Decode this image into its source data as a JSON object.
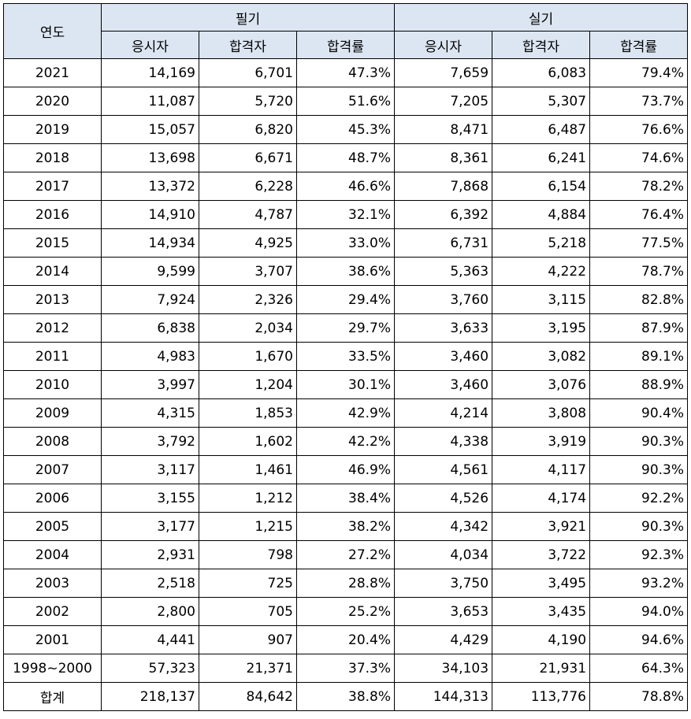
{
  "header": {
    "year": "연도",
    "written": "필기",
    "practical": "실기",
    "applicants": "응시자",
    "passers": "합격자",
    "pass_rate": "합격률"
  },
  "rows": [
    {
      "year": "2021",
      "w_app": "14,169",
      "w_pass": "6,701",
      "w_rate": "47.3%",
      "p_app": "7,659",
      "p_pass": "6,083",
      "p_rate": "79.4%"
    },
    {
      "year": "2020",
      "w_app": "11,087",
      "w_pass": "5,720",
      "w_rate": "51.6%",
      "p_app": "7,205",
      "p_pass": "5,307",
      "p_rate": "73.7%"
    },
    {
      "year": "2019",
      "w_app": "15,057",
      "w_pass": "6,820",
      "w_rate": "45.3%",
      "p_app": "8,471",
      "p_pass": "6,487",
      "p_rate": "76.6%"
    },
    {
      "year": "2018",
      "w_app": "13,698",
      "w_pass": "6,671",
      "w_rate": "48.7%",
      "p_app": "8,361",
      "p_pass": "6,241",
      "p_rate": "74.6%"
    },
    {
      "year": "2017",
      "w_app": "13,372",
      "w_pass": "6,228",
      "w_rate": "46.6%",
      "p_app": "7,868",
      "p_pass": "6,154",
      "p_rate": "78.2%"
    },
    {
      "year": "2016",
      "w_app": "14,910",
      "w_pass": "4,787",
      "w_rate": "32.1%",
      "p_app": "6,392",
      "p_pass": "4,884",
      "p_rate": "76.4%"
    },
    {
      "year": "2015",
      "w_app": "14,934",
      "w_pass": "4,925",
      "w_rate": "33.0%",
      "p_app": "6,731",
      "p_pass": "5,218",
      "p_rate": "77.5%"
    },
    {
      "year": "2014",
      "w_app": "9,599",
      "w_pass": "3,707",
      "w_rate": "38.6%",
      "p_app": "5,363",
      "p_pass": "4,222",
      "p_rate": "78.7%"
    },
    {
      "year": "2013",
      "w_app": "7,924",
      "w_pass": "2,326",
      "w_rate": "29.4%",
      "p_app": "3,760",
      "p_pass": "3,115",
      "p_rate": "82.8%"
    },
    {
      "year": "2012",
      "w_app": "6,838",
      "w_pass": "2,034",
      "w_rate": "29.7%",
      "p_app": "3,633",
      "p_pass": "3,195",
      "p_rate": "87.9%"
    },
    {
      "year": "2011",
      "w_app": "4,983",
      "w_pass": "1,670",
      "w_rate": "33.5%",
      "p_app": "3,460",
      "p_pass": "3,082",
      "p_rate": "89.1%"
    },
    {
      "year": "2010",
      "w_app": "3,997",
      "w_pass": "1,204",
      "w_rate": "30.1%",
      "p_app": "3,460",
      "p_pass": "3,076",
      "p_rate": "88.9%"
    },
    {
      "year": "2009",
      "w_app": "4,315",
      "w_pass": "1,853",
      "w_rate": "42.9%",
      "p_app": "4,214",
      "p_pass": "3,808",
      "p_rate": "90.4%"
    },
    {
      "year": "2008",
      "w_app": "3,792",
      "w_pass": "1,602",
      "w_rate": "42.2%",
      "p_app": "4,338",
      "p_pass": "3,919",
      "p_rate": "90.3%"
    },
    {
      "year": "2007",
      "w_app": "3,117",
      "w_pass": "1,461",
      "w_rate": "46.9%",
      "p_app": "4,561",
      "p_pass": "4,117",
      "p_rate": "90.3%"
    },
    {
      "year": "2006",
      "w_app": "3,155",
      "w_pass": "1,212",
      "w_rate": "38.4%",
      "p_app": "4,526",
      "p_pass": "4,174",
      "p_rate": "92.2%"
    },
    {
      "year": "2005",
      "w_app": "3,177",
      "w_pass": "1,215",
      "w_rate": "38.2%",
      "p_app": "4,342",
      "p_pass": "3,921",
      "p_rate": "90.3%"
    },
    {
      "year": "2004",
      "w_app": "2,931",
      "w_pass": "798",
      "w_rate": "27.2%",
      "p_app": "4,034",
      "p_pass": "3,722",
      "p_rate": "92.3%"
    },
    {
      "year": "2003",
      "w_app": "2,518",
      "w_pass": "725",
      "w_rate": "28.8%",
      "p_app": "3,750",
      "p_pass": "3,495",
      "p_rate": "93.2%"
    },
    {
      "year": "2002",
      "w_app": "2,800",
      "w_pass": "705",
      "w_rate": "25.2%",
      "p_app": "3,653",
      "p_pass": "3,435",
      "p_rate": "94.0%"
    },
    {
      "year": "2001",
      "w_app": "4,441",
      "w_pass": "907",
      "w_rate": "20.4%",
      "p_app": "4,429",
      "p_pass": "4,190",
      "p_rate": "94.6%"
    },
    {
      "year": "1998~2000",
      "w_app": "57,323",
      "w_pass": "21,371",
      "w_rate": "37.3%",
      "p_app": "34,103",
      "p_pass": "21,931",
      "p_rate": "64.3%"
    },
    {
      "year": "합계",
      "w_app": "218,137",
      "w_pass": "84,642",
      "w_rate": "38.8%",
      "p_app": "144,313",
      "p_pass": "113,776",
      "p_rate": "78.8%"
    }
  ],
  "colors": {
    "header_bg": "#dce6f2",
    "border": "#000000",
    "text": "#000000"
  }
}
